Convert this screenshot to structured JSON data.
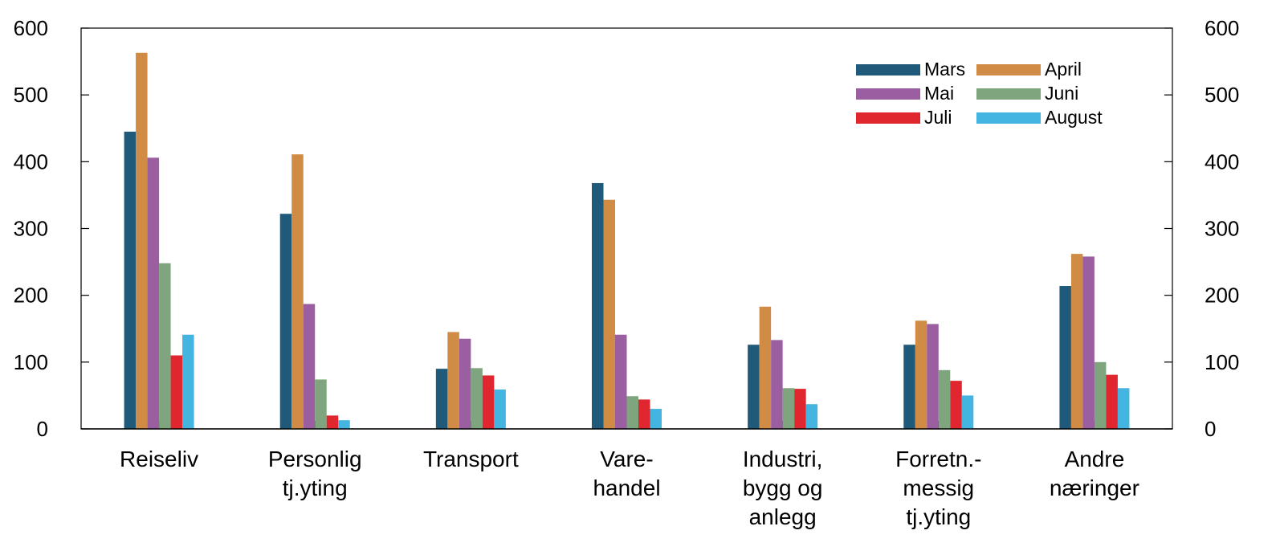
{
  "chart_data": {
    "type": "bar",
    "title": "",
    "xlabel": "",
    "ylabel": "",
    "ylim": [
      0,
      600
    ],
    "yticks": [
      0,
      100,
      200,
      300,
      400,
      500,
      600
    ],
    "secondary_y_axis": true,
    "grid": false,
    "legend_position": "top-right",
    "categories": [
      [
        "Reiseliv"
      ],
      [
        "Personlig",
        "tj.yting"
      ],
      [
        "Transport"
      ],
      [
        "Vare-",
        "handel"
      ],
      [
        "Industri,",
        "bygg og",
        "anlegg"
      ],
      [
        "Forretn.-",
        "messig",
        "tj.yting"
      ],
      [
        "Andre",
        "næringer"
      ]
    ],
    "series": [
      {
        "name": "Mars",
        "color": "#1f5a7a",
        "values": [
          445,
          322,
          90,
          368,
          126,
          126,
          214
        ]
      },
      {
        "name": "April",
        "color": "#d08c44",
        "values": [
          563,
          411,
          145,
          343,
          183,
          162,
          262
        ]
      },
      {
        "name": "Mai",
        "color": "#9b5ea0",
        "values": [
          406,
          187,
          135,
          141,
          133,
          157,
          258
        ]
      },
      {
        "name": "Juni",
        "color": "#7ea57e",
        "values": [
          248,
          74,
          91,
          49,
          61,
          88,
          100
        ]
      },
      {
        "name": "Juli",
        "color": "#e0262e",
        "values": [
          110,
          20,
          80,
          44,
          60,
          72,
          81
        ]
      },
      {
        "name": "August",
        "color": "#44b4e0",
        "values": [
          141,
          13,
          59,
          30,
          37,
          50,
          61
        ]
      }
    ]
  }
}
